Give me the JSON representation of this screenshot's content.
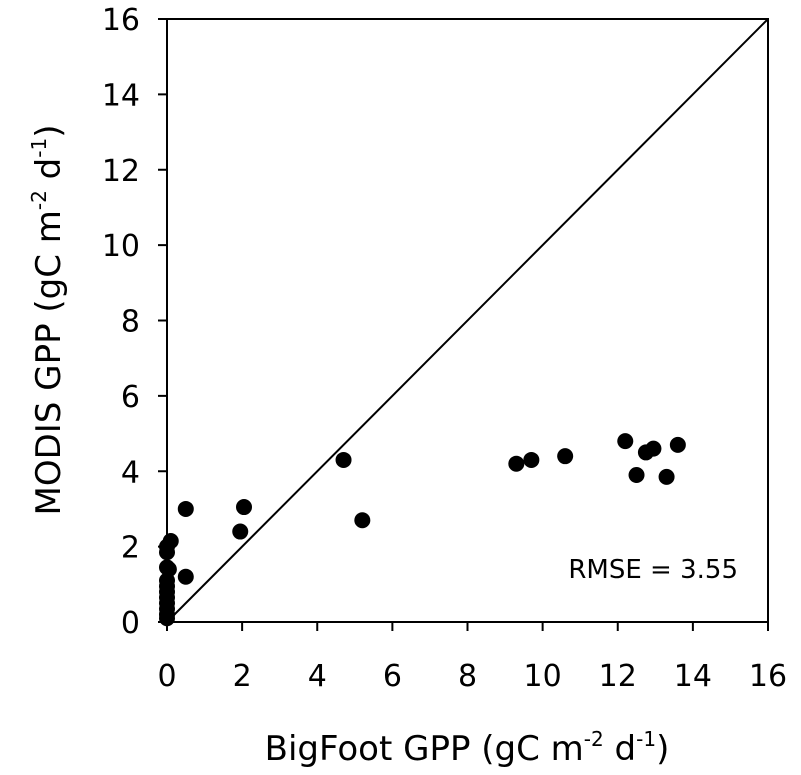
{
  "chart_data": {
    "type": "scatter",
    "xlabel": {
      "text": "BigFoot GPP (gC m",
      "sup1": "-2",
      "mid": " d",
      "sup2": "-1",
      "end": ")"
    },
    "ylabel": {
      "text": "MODIS GPP (gC m",
      "sup1": "-2",
      "mid": " d",
      "sup2": "-1",
      "end": ")"
    },
    "xlim": [
      0,
      16
    ],
    "ylim": [
      0,
      16
    ],
    "xticks": [
      "0",
      "2",
      "4",
      "6",
      "8",
      "10",
      "12",
      "14",
      "16"
    ],
    "yticks": [
      "0",
      "2",
      "4",
      "6",
      "8",
      "10",
      "12",
      "14",
      "16"
    ],
    "reference_line": "1:1",
    "annotation": "RMSE = 3.55",
    "points": [
      {
        "x": 0.0,
        "y": 0.1
      },
      {
        "x": 0.0,
        "y": 0.2
      },
      {
        "x": 0.0,
        "y": 0.35
      },
      {
        "x": 0.0,
        "y": 0.5
      },
      {
        "x": 0.0,
        "y": 0.65
      },
      {
        "x": 0.0,
        "y": 0.8
      },
      {
        "x": 0.0,
        "y": 0.95
      },
      {
        "x": 0.0,
        "y": 1.1
      },
      {
        "x": 0.0,
        "y": 1.45
      },
      {
        "x": 0.05,
        "y": 1.4
      },
      {
        "x": 0.0,
        "y": 1.85
      },
      {
        "x": 0.0,
        "y": 2.0
      },
      {
        "x": 0.1,
        "y": 2.15
      },
      {
        "x": 0.5,
        "y": 1.2
      },
      {
        "x": 0.5,
        "y": 3.0
      },
      {
        "x": 1.95,
        "y": 2.4
      },
      {
        "x": 2.05,
        "y": 3.05
      },
      {
        "x": 4.7,
        "y": 4.3
      },
      {
        "x": 5.2,
        "y": 2.7
      },
      {
        "x": 9.3,
        "y": 4.2
      },
      {
        "x": 9.7,
        "y": 4.3
      },
      {
        "x": 10.6,
        "y": 4.4
      },
      {
        "x": 12.2,
        "y": 4.8
      },
      {
        "x": 12.5,
        "y": 3.9
      },
      {
        "x": 12.75,
        "y": 4.5
      },
      {
        "x": 12.95,
        "y": 4.6
      },
      {
        "x": 13.3,
        "y": 3.85
      },
      {
        "x": 13.6,
        "y": 4.7
      }
    ]
  }
}
